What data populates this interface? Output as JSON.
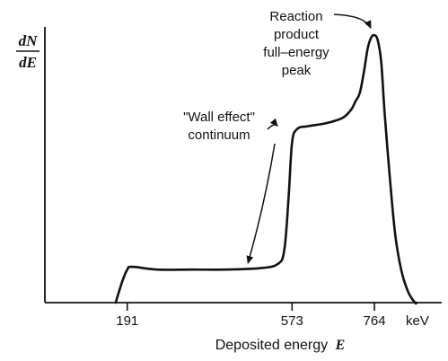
{
  "chart_data": {
    "type": "line",
    "title": "",
    "ylabel": {
      "numerator": "dN",
      "denominator": "dE"
    },
    "xlabel": {
      "text": "Deposited energy",
      "symbol": "E"
    },
    "x_unit": "keV",
    "xlim": [
      0,
      920
    ],
    "ylim": [
      0,
      1.0
    ],
    "grid": false,
    "legend": "none",
    "x_ticks": [
      {
        "value": 191,
        "label": "191"
      },
      {
        "value": 573,
        "label": "573"
      },
      {
        "value": 764,
        "label": "764"
      }
    ],
    "series": [
      {
        "x": [
          164,
          180,
          191,
          202,
          260,
          340,
          420,
          500,
          540,
          555,
          565,
          573,
          585,
          610,
          650,
          690,
          710,
          720,
          730,
          740,
          748,
          756,
          764,
          772,
          780,
          788,
          800,
          812,
          826,
          842,
          858,
          862
        ],
        "y": [
          0.0,
          0.08,
          0.12,
          0.13,
          0.12,
          0.12,
          0.12,
          0.125,
          0.14,
          0.19,
          0.38,
          0.58,
          0.63,
          0.64,
          0.65,
          0.67,
          0.7,
          0.73,
          0.76,
          0.84,
          0.92,
          0.96,
          0.97,
          0.95,
          0.87,
          0.68,
          0.45,
          0.25,
          0.12,
          0.04,
          0.0,
          0.0
        ]
      }
    ],
    "annotations": [
      {
        "lines": [
          "\"Wall effect\"",
          "continuum"
        ],
        "points_to": [
          {
            "x": 475,
            "y": 0.13
          },
          {
            "x": 560,
            "y": 0.66
          }
        ]
      },
      {
        "lines": [
          "Reaction",
          "product",
          "full–energy",
          "peak"
        ],
        "points_to": [
          {
            "x": 764,
            "y": 0.97
          }
        ]
      }
    ]
  }
}
